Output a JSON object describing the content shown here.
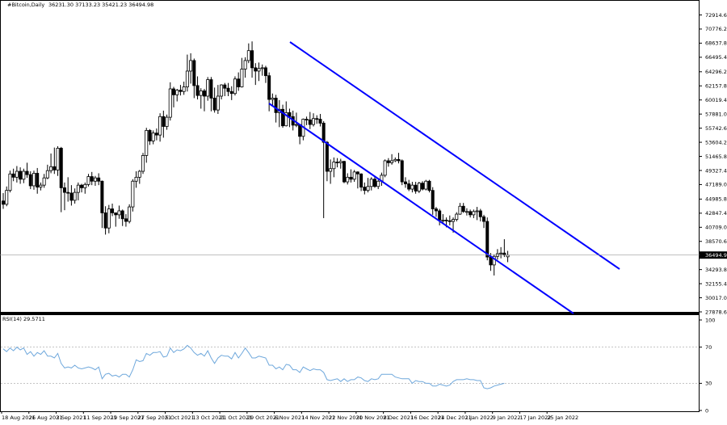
{
  "chart_data": [
    {
      "type": "candlestick",
      "header": {
        "symbol": "#Bitcoin,Daily",
        "ohlc": "36231.30 37133.23 35421.23 36494.98"
      },
      "current_price": 36494.98,
      "current_price_label": "36494.98",
      "ylim": [
        27878.6,
        74200
      ],
      "y_ticks": [
        "72914.60",
        "70776.20",
        "68637.80",
        "66495.40",
        "64296.20",
        "62157.80",
        "60019.40",
        "57881.00",
        "55742.60",
        "53604.20",
        "51465.80",
        "49327.40",
        "47189.00",
        "44985.80",
        "42847.40",
        "40709.00",
        "38570.60",
        "36432.20",
        "34293.80",
        "32155.40",
        "30017.00",
        "27878.60"
      ],
      "x_labels": [
        "18 Aug 2021",
        "26 Aug 2021",
        "3 Sep 2021",
        "11 Sep 2021",
        "19 Sep 2021",
        "27 Sep 2021",
        "5 Oct 2021",
        "13 Oct 2021",
        "21 Oct 2021",
        "29 Oct 2021",
        "6 Nov 2021",
        "14 Nov 2021",
        "22 Nov 2021",
        "30 Nov 2021",
        "8 Dec 2021",
        "16 Dec 2021",
        "24 Dec 2021",
        "1 Jan 2022",
        "9 Jan 2022",
        "17 Jan 2022",
        "25 Jan 2022"
      ],
      "candles": [
        [
          44700,
          44200,
          45900,
          43500
        ],
        [
          44200,
          46300,
          46900,
          43900
        ],
        [
          46300,
          48800,
          49300,
          46000
        ],
        [
          48800,
          48300,
          49600,
          47700
        ],
        [
          48300,
          49200,
          50000,
          47500
        ],
        [
          49200,
          48000,
          49800,
          47300
        ],
        [
          48000,
          49200,
          49600,
          47400
        ],
        [
          49200,
          48700,
          50500,
          48200
        ],
        [
          48700,
          47000,
          49200,
          46500
        ],
        [
          47000,
          48900,
          49300,
          46400
        ],
        [
          48900,
          46800,
          49700,
          45800
        ],
        [
          46800,
          47100,
          47500,
          46300
        ],
        [
          47100,
          48200,
          48800,
          46700
        ],
        [
          48200,
          49300,
          50200,
          48000
        ],
        [
          49300,
          49900,
          51900,
          48900
        ],
        [
          49900,
          49400,
          52800,
          48800
        ],
        [
          49400,
          52700,
          53000,
          48500
        ],
        [
          52700,
          46700,
          52900,
          43000
        ],
        [
          46700,
          46000,
          47500,
          43300
        ],
        [
          46000,
          45900,
          48300,
          44600
        ],
        [
          45900,
          44800,
          47100,
          44000
        ],
        [
          44800,
          46000,
          46600,
          44300
        ],
        [
          46000,
          47100,
          47500,
          44800
        ],
        [
          47100,
          46700,
          47300,
          46000
        ],
        [
          46700,
          47200,
          47500,
          45800
        ],
        [
          47200,
          48400,
          48800,
          46900
        ],
        [
          48400,
          47700,
          49100,
          47100
        ],
        [
          47700,
          48200,
          48500,
          47000
        ],
        [
          48200,
          47700,
          48900,
          47100
        ],
        [
          47700,
          42900,
          47800,
          40600
        ],
        [
          42900,
          40600,
          43900,
          39600
        ],
        [
          40600,
          43500,
          44100,
          39800
        ],
        [
          43500,
          42900,
          44300,
          42400
        ],
        [
          42900,
          42600,
          42900,
          40800
        ],
        [
          42600,
          43200,
          44000,
          42000
        ],
        [
          43200,
          42000,
          43400,
          40900
        ],
        [
          42000,
          41600,
          42700,
          40800
        ],
        [
          41600,
          43800,
          44200,
          41300
        ],
        [
          43800,
          47700,
          48000,
          43100
        ],
        [
          47700,
          48300,
          49200,
          46700
        ],
        [
          48300,
          49200,
          49400,
          47300
        ],
        [
          49200,
          51600,
          52000,
          48800
        ],
        [
          51600,
          55400,
          55800,
          50500
        ],
        [
          55400,
          53800,
          55600,
          53200
        ],
        [
          53800,
          55000,
          55400,
          53300
        ],
        [
          55000,
          54700,
          55700,
          53900
        ],
        [
          54700,
          57500,
          58000,
          53700
        ],
        [
          57500,
          56000,
          58400,
          54300
        ],
        [
          56000,
          57400,
          57800,
          55500
        ],
        [
          57400,
          61700,
          62700,
          56900
        ],
        [
          61700,
          60800,
          62000,
          58900
        ],
        [
          60800,
          61500,
          61700,
          59800
        ],
        [
          61500,
          61300,
          62300,
          60700
        ],
        [
          61300,
          62000,
          62800,
          60800
        ],
        [
          62000,
          64400,
          66900,
          61300
        ],
        [
          64400,
          66000,
          67100,
          62500
        ],
        [
          66000,
          62200,
          66300,
          60300
        ],
        [
          62200,
          60700,
          63600,
          60100
        ],
        [
          60700,
          61400,
          61800,
          58700
        ],
        [
          61400,
          60600,
          61700,
          58300
        ],
        [
          60600,
          63100,
          63500,
          59900
        ],
        [
          63100,
          60300,
          63500,
          58300
        ],
        [
          60300,
          58500,
          61900,
          58100
        ],
        [
          58500,
          60600,
          62300,
          57900
        ],
        [
          60600,
          62300,
          62400,
          60100
        ],
        [
          62300,
          61800,
          62600,
          60600
        ],
        [
          61800,
          61300,
          62600,
          60600
        ],
        [
          61300,
          61000,
          62100,
          60000
        ],
        [
          61000,
          63200,
          63600,
          60700
        ],
        [
          63200,
          62000,
          64200,
          61400
        ],
        [
          62000,
          64700,
          66400,
          61900
        ],
        [
          64700,
          66000,
          66500,
          63400
        ],
        [
          66000,
          67500,
          68600,
          65600
        ],
        [
          67500,
          64900,
          68900,
          63400
        ],
        [
          64900,
          64400,
          65600,
          62300
        ],
        [
          64400,
          64800,
          65700,
          62900
        ],
        [
          64800,
          64900,
          65400,
          63700
        ],
        [
          64900,
          63700,
          65200,
          62600
        ],
        [
          63700,
          60100,
          64200,
          58300
        ],
        [
          60100,
          60300,
          61000,
          59100
        ],
        [
          60300,
          58100,
          60800,
          56600
        ],
        [
          58100,
          58600,
          60000,
          55900
        ],
        [
          58600,
          56100,
          59300,
          55800
        ],
        [
          56100,
          58100,
          59800,
          56000
        ],
        [
          58100,
          57500,
          58700,
          55900
        ],
        [
          57500,
          56200,
          58400,
          55400
        ],
        [
          56200,
          56300,
          58100,
          55900
        ],
        [
          56300,
          54500,
          56300,
          53300
        ],
        [
          54500,
          57100,
          57200,
          53900
        ],
        [
          57100,
          57000,
          57500,
          56200
        ],
        [
          57000,
          56300,
          58200,
          55600
        ],
        [
          56300,
          57200,
          58000,
          56000
        ],
        [
          57200,
          57100,
          57700,
          56400
        ],
        [
          57100,
          56500,
          57900,
          56000
        ],
        [
          56500,
          53600,
          56800,
          42100
        ],
        [
          53600,
          49200,
          53800,
          47700
        ],
        [
          49200,
          49600,
          51000,
          47300
        ],
        [
          49600,
          50600,
          51300,
          48300
        ],
        [
          50600,
          50500,
          51200,
          49800
        ],
        [
          50500,
          50700,
          51100,
          49600
        ],
        [
          50700,
          47600,
          50800,
          47400
        ],
        [
          47600,
          48300,
          48900,
          47200
        ],
        [
          48300,
          48000,
          49500,
          47500
        ],
        [
          48000,
          49100,
          49400,
          47600
        ],
        [
          49100,
          48800,
          49200,
          46600
        ],
        [
          48800,
          46800,
          48900,
          46200
        ],
        [
          46800,
          46300,
          47500,
          45700
        ],
        [
          46300,
          46900,
          48200,
          46000
        ],
        [
          46900,
          48000,
          48300,
          46300
        ],
        [
          48000,
          46900,
          48500,
          46700
        ],
        [
          46900,
          47700,
          47900,
          46500
        ],
        [
          47700,
          48600,
          49000,
          47000
        ],
        [
          48600,
          50800,
          51000,
          48300
        ],
        [
          50800,
          50500,
          51200,
          49900
        ],
        [
          50500,
          50800,
          51800,
          50200
        ],
        [
          50800,
          51000,
          51300,
          50600
        ],
        [
          51000,
          50800,
          52000,
          50400
        ],
        [
          50800,
          47600,
          51000,
          47100
        ],
        [
          47600,
          47300,
          48300,
          46700
        ],
        [
          47300,
          46500,
          47900,
          46200
        ],
        [
          46500,
          47100,
          47600,
          46000
        ],
        [
          47100,
          46200,
          47600,
          45800
        ],
        [
          46200,
          47400,
          47600,
          45900
        ],
        [
          47400,
          46500,
          47700,
          46300
        ],
        [
          46500,
          47700,
          47900,
          46300
        ],
        [
          47700,
          46300,
          47900,
          46000
        ],
        [
          46300,
          43500,
          46800,
          42600
        ],
        [
          43500,
          43200,
          43800,
          42300
        ],
        [
          43200,
          41800,
          43500,
          41000
        ],
        [
          41800,
          41800,
          42700,
          41200
        ],
        [
          41800,
          41700,
          42200,
          40700
        ],
        [
          41700,
          41600,
          42500,
          41000
        ],
        [
          41600,
          41900,
          42200,
          39900
        ],
        [
          41900,
          42700,
          43000,
          41600
        ],
        [
          42700,
          43900,
          44400,
          42600
        ],
        [
          43900,
          43100,
          44400,
          42900
        ],
        [
          43100,
          43100,
          43600,
          42500
        ],
        [
          43100,
          42600,
          43400,
          42200
        ],
        [
          42600,
          43100,
          43400,
          42100
        ],
        [
          43100,
          43200,
          43800,
          41800
        ],
        [
          43200,
          42300,
          43500,
          41600
        ],
        [
          42300,
          41600,
          42600,
          40600
        ],
        [
          41600,
          36200,
          42200,
          35700
        ],
        [
          36200,
          35000,
          36800,
          34100
        ],
        [
          35000,
          36300,
          36600,
          33400
        ],
        [
          36300,
          36700,
          37400,
          35800
        ],
        [
          36700,
          36800,
          37700,
          36000
        ],
        [
          36800,
          36500,
          38900,
          36200
        ],
        [
          36231,
          36495,
          37133,
          35421
        ]
      ],
      "channel_color": "#0000FF"
    },
    {
      "type": "line",
      "title": "RSI(14) 29.5711",
      "ylim": [
        0,
        100
      ],
      "y_ticks": [
        "100",
        "70",
        "30",
        "0"
      ],
      "levels": [
        70,
        30
      ],
      "series": [
        {
          "color": "#6FA8DC",
          "values": [
            68,
            65,
            69,
            66,
            70,
            67,
            69,
            62,
            65,
            60,
            64,
            62,
            66,
            60,
            60,
            58,
            63,
            52,
            47,
            48,
            47,
            50,
            47,
            46,
            47,
            48,
            47,
            45,
            48,
            35,
            40,
            41,
            38,
            39,
            37,
            40,
            40,
            37,
            45,
            56,
            54,
            55,
            63,
            61,
            64,
            64,
            65,
            59,
            60,
            69,
            64,
            67,
            66,
            68,
            72,
            69,
            64,
            61,
            63,
            60,
            66,
            58,
            52,
            58,
            61,
            60,
            60,
            57,
            64,
            58,
            63,
            69,
            64,
            58,
            58,
            60,
            59,
            58,
            50,
            50,
            46,
            48,
            45,
            51,
            50,
            45,
            45,
            42,
            48,
            46,
            44,
            46,
            45,
            45,
            42,
            34,
            33,
            34,
            35,
            32,
            35,
            32,
            34,
            34,
            37,
            36,
            33,
            32,
            35,
            34,
            35,
            40,
            40,
            40,
            40,
            37,
            36,
            35,
            35,
            35,
            30,
            33,
            32,
            32,
            30,
            30,
            27,
            27,
            29,
            28,
            27,
            28,
            32,
            34,
            34,
            34,
            35,
            34,
            34,
            33,
            33,
            25,
            24,
            25,
            27,
            28,
            29,
            30
          ]
        }
      ]
    }
  ]
}
